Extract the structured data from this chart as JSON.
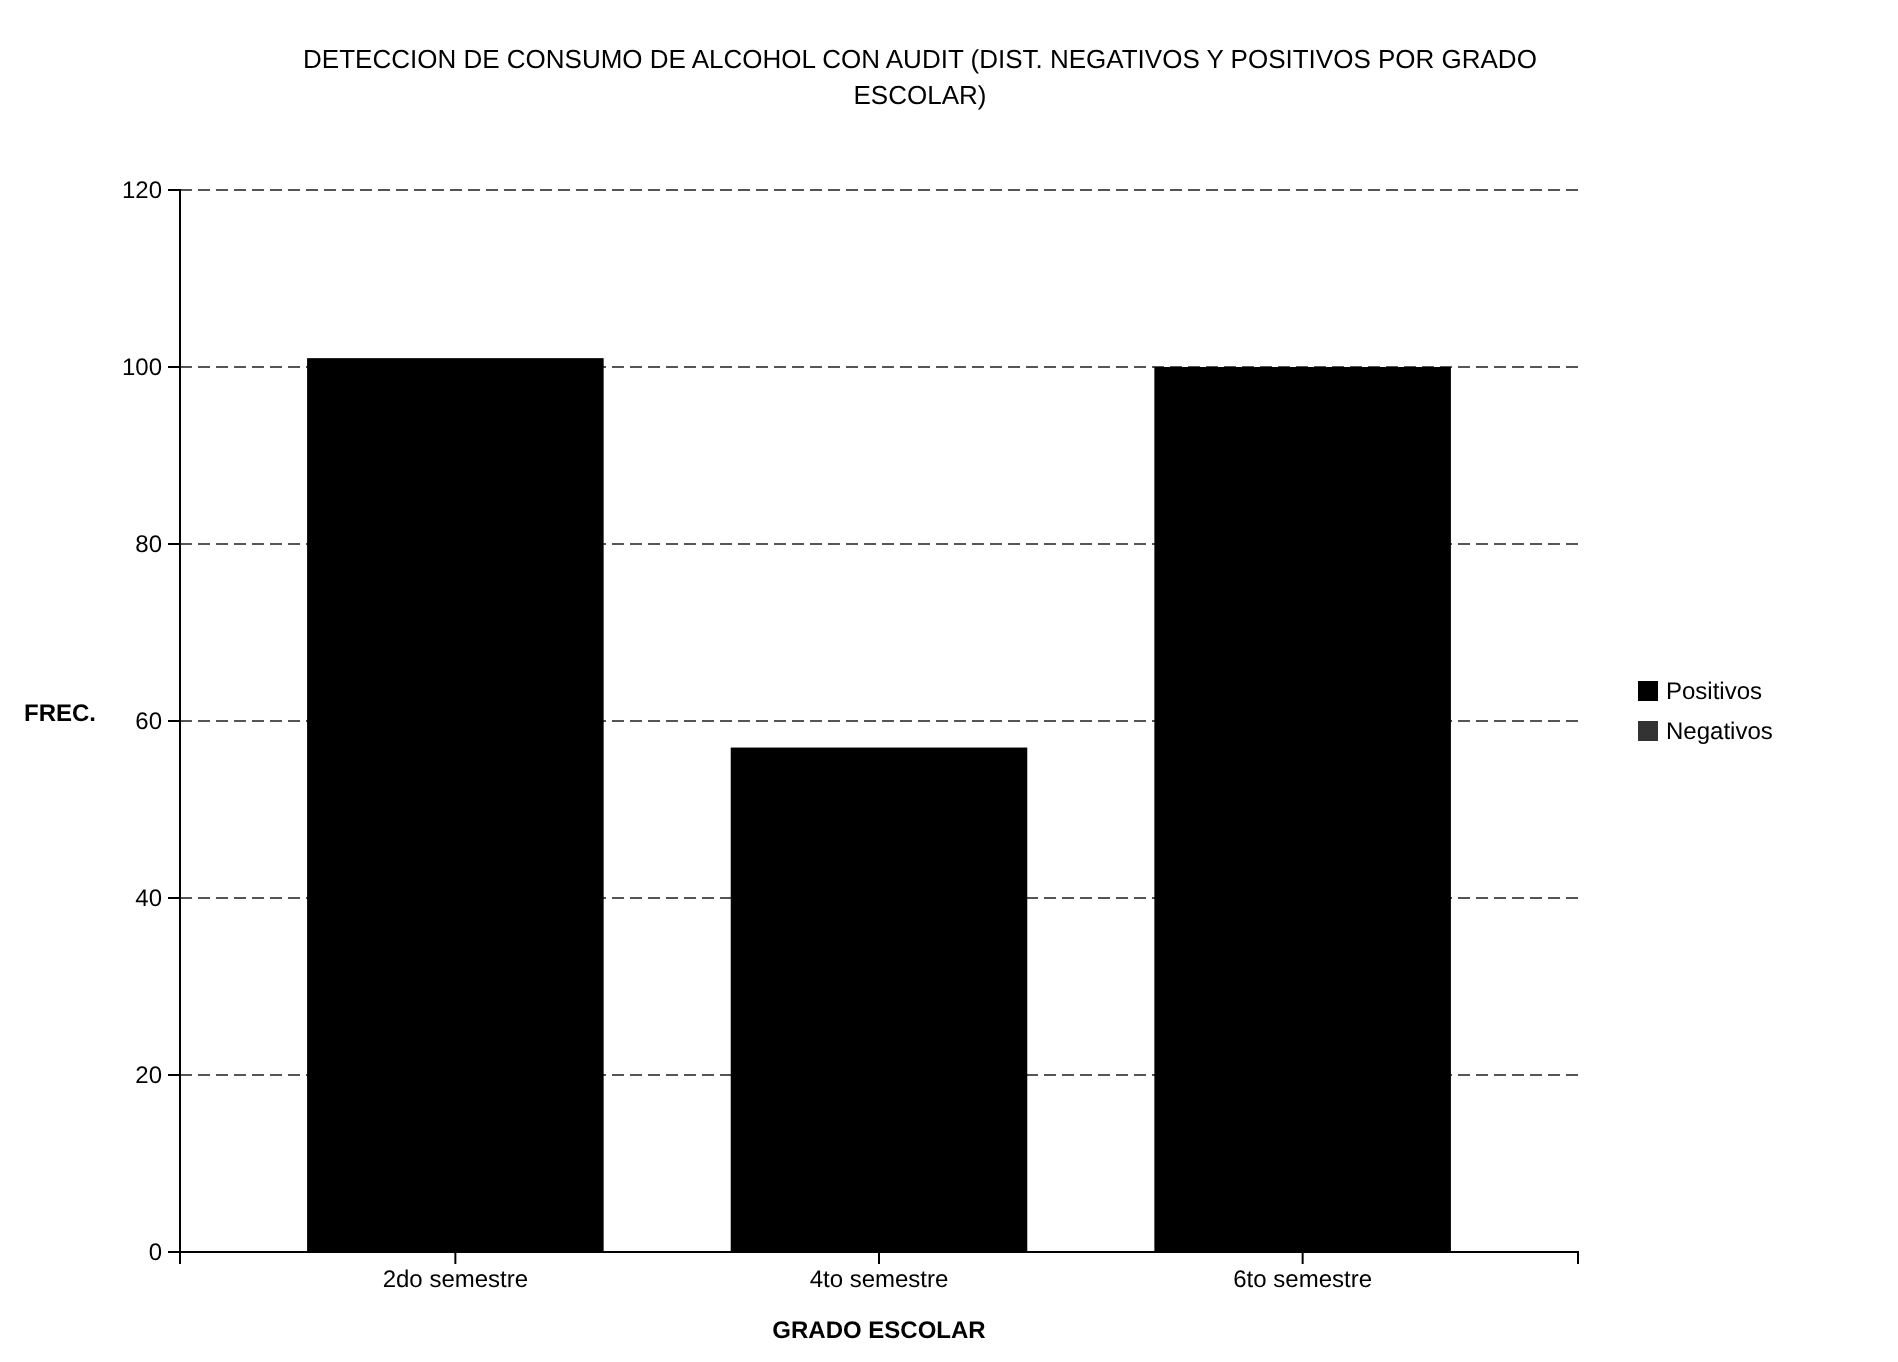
{
  "chart_data": {
    "type": "bar",
    "title": "DETECCION DE CONSUMO DE ALCOHOL CON AUDIT (DIST. NEGATIVOS Y POSITIVOS POR GRADO ESCOLAR)",
    "xlabel": "GRADO ESCOLAR",
    "ylabel": "FREC.",
    "categories": [
      "2do semestre",
      "4to semestre",
      "6to semestre"
    ],
    "series": [
      {
        "name": "Positivos",
        "color": "#000000",
        "values": [
          101,
          57,
          100
        ]
      },
      {
        "name": "Negativos",
        "color": "#333333",
        "values": [
          null,
          null,
          null
        ]
      }
    ],
    "ylim": [
      0,
      120
    ],
    "yticks": [
      0,
      20,
      40,
      60,
      80,
      100,
      120
    ],
    "grid": "y",
    "legend": "right"
  }
}
